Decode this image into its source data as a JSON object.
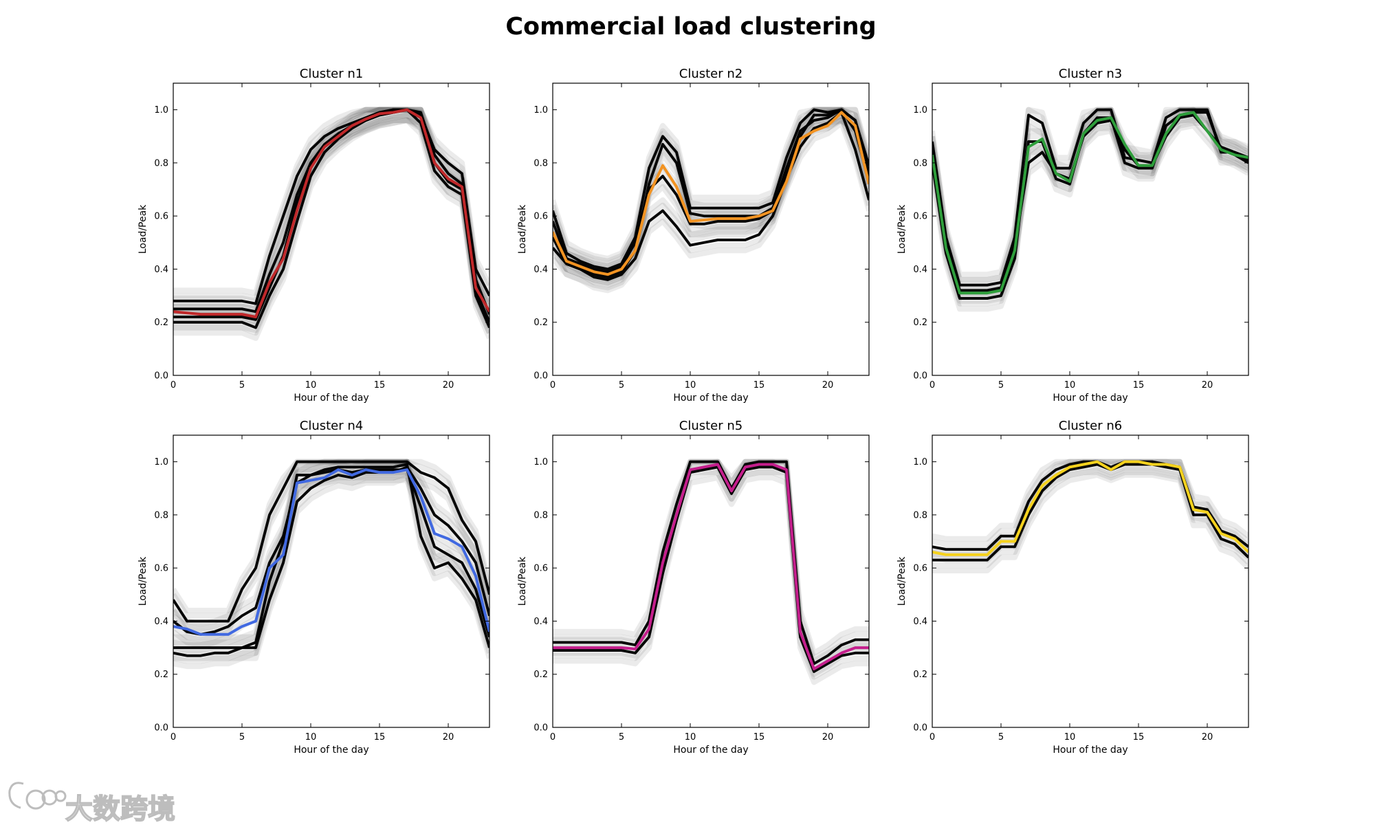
{
  "figure": {
    "title": "Commercial load clustering"
  },
  "watermark": {
    "text": "大数跨境"
  },
  "chart_data": [
    {
      "type": "line",
      "title": "Cluster n1",
      "xlabel": "Hour of the day",
      "ylabel": "Load/Peak",
      "xlim": [
        0,
        23
      ],
      "ylim": [
        0,
        1.1
      ],
      "xticks": [
        "0",
        "5",
        "10",
        "15",
        "20"
      ],
      "yticks": [
        "0.0",
        "0.2",
        "0.4",
        "0.6",
        "0.8",
        "1.0"
      ],
      "centroid_color": "#c0282a",
      "centroid": [
        0.24,
        0.235,
        0.23,
        0.23,
        0.23,
        0.23,
        0.22,
        0.35,
        0.44,
        0.62,
        0.78,
        0.86,
        0.9,
        0.94,
        0.965,
        0.985,
        0.99,
        1.0,
        0.97,
        0.8,
        0.74,
        0.71,
        0.33,
        0.24
      ],
      "band_lines": [
        [
          0.28,
          0.28,
          0.28,
          0.28,
          0.28,
          0.28,
          0.27,
          0.45,
          0.6,
          0.75,
          0.85,
          0.9,
          0.93,
          0.95,
          0.97,
          0.99,
          1.0,
          1.0,
          0.98,
          0.85,
          0.8,
          0.76,
          0.4,
          0.3
        ],
        [
          0.2,
          0.2,
          0.2,
          0.2,
          0.2,
          0.2,
          0.18,
          0.3,
          0.4,
          0.58,
          0.75,
          0.84,
          0.89,
          0.93,
          0.96,
          0.98,
          0.99,
          1.0,
          0.95,
          0.77,
          0.71,
          0.68,
          0.3,
          0.18
        ],
        [
          0.25,
          0.25,
          0.25,
          0.25,
          0.25,
          0.25,
          0.24,
          0.38,
          0.5,
          0.68,
          0.8,
          0.87,
          0.91,
          0.94,
          0.96,
          0.98,
          0.99,
          1.0,
          0.99,
          0.83,
          0.76,
          0.72,
          0.36,
          0.23
        ],
        [
          0.22,
          0.22,
          0.22,
          0.22,
          0.22,
          0.22,
          0.21,
          0.33,
          0.45,
          0.65,
          0.79,
          0.86,
          0.9,
          0.94,
          0.965,
          0.985,
          1.0,
          1.0,
          0.97,
          0.8,
          0.73,
          0.7,
          0.32,
          0.2
        ]
      ]
    },
    {
      "type": "line",
      "title": "Cluster n2",
      "xlabel": "Hour of the day",
      "ylabel": "Load/Peak",
      "xlim": [
        0,
        23
      ],
      "ylim": [
        0,
        1.1
      ],
      "xticks": [
        "0",
        "5",
        "10",
        "15",
        "20"
      ],
      "yticks": [
        "0.0",
        "0.2",
        "0.4",
        "0.6",
        "0.8",
        "1.0"
      ],
      "centroid_color": "#f29322",
      "centroid": [
        0.54,
        0.43,
        0.41,
        0.39,
        0.38,
        0.4,
        0.47,
        0.68,
        0.79,
        0.71,
        0.58,
        0.585,
        0.59,
        0.59,
        0.59,
        0.6,
        0.62,
        0.73,
        0.89,
        0.92,
        0.94,
        0.99,
        0.94,
        0.72
      ],
      "band_lines": [
        [
          0.62,
          0.46,
          0.43,
          0.41,
          0.4,
          0.42,
          0.52,
          0.78,
          0.9,
          0.84,
          0.63,
          0.63,
          0.63,
          0.63,
          0.63,
          0.63,
          0.65,
          0.82,
          0.95,
          1.0,
          0.99,
          1.0,
          0.96,
          0.79
        ],
        [
          0.52,
          0.42,
          0.4,
          0.38,
          0.37,
          0.39,
          0.47,
          0.72,
          0.87,
          0.8,
          0.61,
          0.6,
          0.6,
          0.6,
          0.6,
          0.6,
          0.63,
          0.75,
          0.9,
          0.98,
          0.98,
          1.0,
          0.96,
          0.76
        ],
        [
          0.48,
          0.42,
          0.4,
          0.37,
          0.36,
          0.38,
          0.44,
          0.58,
          0.62,
          0.56,
          0.49,
          0.5,
          0.51,
          0.51,
          0.51,
          0.53,
          0.6,
          0.74,
          0.86,
          0.93,
          0.95,
          0.99,
          0.85,
          0.66
        ],
        [
          0.58,
          0.44,
          0.42,
          0.4,
          0.39,
          0.41,
          0.5,
          0.7,
          0.75,
          0.68,
          0.57,
          0.57,
          0.58,
          0.58,
          0.58,
          0.59,
          0.62,
          0.78,
          0.92,
          0.96,
          0.97,
          1.0,
          0.92,
          0.74
        ]
      ]
    },
    {
      "type": "line",
      "title": "Cluster n3",
      "xlabel": "Hour of the day",
      "ylabel": "Load/Peak",
      "xlim": [
        0,
        23
      ],
      "ylim": [
        0,
        1.1
      ],
      "xticks": [
        "0",
        "5",
        "10",
        "15",
        "20"
      ],
      "yticks": [
        "0.0",
        "0.2",
        "0.4",
        "0.6",
        "0.8",
        "1.0"
      ],
      "centroid_color": "#2e9e3b",
      "centroid": [
        0.83,
        0.48,
        0.31,
        0.31,
        0.31,
        0.32,
        0.47,
        0.86,
        0.89,
        0.76,
        0.73,
        0.91,
        0.96,
        0.97,
        0.87,
        0.79,
        0.79,
        0.91,
        0.98,
        0.99,
        0.92,
        0.85,
        0.83,
        0.82
      ],
      "band_lines": [
        [
          0.88,
          0.52,
          0.34,
          0.34,
          0.34,
          0.35,
          0.52,
          0.98,
          0.95,
          0.78,
          0.78,
          0.95,
          1.0,
          1.0,
          0.82,
          0.81,
          0.8,
          0.97,
          1.0,
          1.0,
          1.0,
          0.84,
          0.84,
          0.81
        ],
        [
          0.8,
          0.46,
          0.29,
          0.29,
          0.29,
          0.3,
          0.44,
          0.88,
          0.88,
          0.74,
          0.72,
          0.91,
          0.97,
          0.97,
          0.8,
          0.78,
          0.78,
          0.94,
          0.98,
          0.99,
          0.99,
          0.85,
          0.83,
          0.8
        ],
        [
          0.86,
          0.5,
          0.32,
          0.32,
          0.32,
          0.33,
          0.49,
          0.8,
          0.84,
          0.76,
          0.74,
          0.9,
          0.95,
          0.96,
          0.85,
          0.79,
          0.79,
          0.9,
          0.97,
          0.98,
          0.92,
          0.86,
          0.84,
          0.82
        ]
      ]
    },
    {
      "type": "line",
      "title": "Cluster n4",
      "xlabel": "Hour of the day",
      "ylabel": "Load/Peak",
      "xlim": [
        0,
        23
      ],
      "ylim": [
        0,
        1.1
      ],
      "xticks": [
        "0",
        "5",
        "10",
        "15",
        "20"
      ],
      "yticks": [
        "0.0",
        "0.2",
        "0.4",
        "0.6",
        "0.8",
        "1.0"
      ],
      "centroid_color": "#4169e1",
      "centroid": [
        0.38,
        0.37,
        0.35,
        0.35,
        0.35,
        0.38,
        0.4,
        0.6,
        0.65,
        0.92,
        0.93,
        0.94,
        0.97,
        0.95,
        0.97,
        0.96,
        0.96,
        0.97,
        0.87,
        0.73,
        0.71,
        0.68,
        0.57,
        0.36
      ],
      "band_lines": [
        [
          0.48,
          0.4,
          0.4,
          0.4,
          0.4,
          0.52,
          0.6,
          0.8,
          0.9,
          1.0,
          1.0,
          1.0,
          1.0,
          1.0,
          1.0,
          1.0,
          1.0,
          1.0,
          0.96,
          0.94,
          0.9,
          0.78,
          0.7,
          0.5
        ],
        [
          0.3,
          0.3,
          0.3,
          0.3,
          0.3,
          0.3,
          0.32,
          0.55,
          0.7,
          0.95,
          0.95,
          0.97,
          0.98,
          0.98,
          0.98,
          0.98,
          0.98,
          0.99,
          0.72,
          0.6,
          0.62,
          0.56,
          0.48,
          0.3
        ],
        [
          0.28,
          0.27,
          0.27,
          0.28,
          0.28,
          0.3,
          0.3,
          0.48,
          0.62,
          0.85,
          0.9,
          0.93,
          0.95,
          0.94,
          0.96,
          0.96,
          0.96,
          0.98,
          0.9,
          0.8,
          0.76,
          0.7,
          0.62,
          0.42
        ],
        [
          0.4,
          0.36,
          0.35,
          0.36,
          0.38,
          0.42,
          0.45,
          0.62,
          0.72,
          0.92,
          0.95,
          0.96,
          0.97,
          0.96,
          0.97,
          0.97,
          0.97,
          0.97,
          0.83,
          0.68,
          0.65,
          0.62,
          0.52,
          0.34
        ]
      ]
    },
    {
      "type": "line",
      "title": "Cluster n5",
      "xlabel": "Hour of the day",
      "ylabel": "Load/Peak",
      "xlim": [
        0,
        23
      ],
      "ylim": [
        0,
        1.1
      ],
      "xticks": [
        "0",
        "5",
        "10",
        "15",
        "20"
      ],
      "yticks": [
        "0.0",
        "0.2",
        "0.4",
        "0.6",
        "0.8",
        "1.0"
      ],
      "centroid_color": "#c41e8c",
      "centroid": [
        0.3,
        0.3,
        0.3,
        0.3,
        0.3,
        0.3,
        0.295,
        0.37,
        0.62,
        0.8,
        0.97,
        0.98,
        0.99,
        0.89,
        0.98,
        0.99,
        0.99,
        0.97,
        0.36,
        0.22,
        0.25,
        0.28,
        0.3,
        0.3
      ],
      "band_lines": [
        [
          0.32,
          0.32,
          0.32,
          0.32,
          0.32,
          0.32,
          0.31,
          0.4,
          0.66,
          0.84,
          1.0,
          1.0,
          1.0,
          0.9,
          0.99,
          1.0,
          1.0,
          1.0,
          0.4,
          0.24,
          0.27,
          0.31,
          0.33,
          0.33
        ],
        [
          0.29,
          0.29,
          0.29,
          0.29,
          0.29,
          0.29,
          0.28,
          0.34,
          0.58,
          0.78,
          0.96,
          0.97,
          0.98,
          0.88,
          0.97,
          0.98,
          0.98,
          0.96,
          0.34,
          0.21,
          0.24,
          0.27,
          0.28,
          0.28
        ]
      ]
    },
    {
      "type": "line",
      "title": "Cluster n6",
      "xlabel": "Hour of the day",
      "ylabel": "Load/Peak",
      "xlim": [
        0,
        23
      ],
      "ylim": [
        0,
        1.1
      ],
      "xticks": [
        "0",
        "5",
        "10",
        "15",
        "20"
      ],
      "yticks": [
        "0.0",
        "0.2",
        "0.4",
        "0.6",
        "0.8",
        "1.0"
      ],
      "centroid_color": "#f5d21e",
      "centroid": [
        0.66,
        0.65,
        0.65,
        0.65,
        0.65,
        0.7,
        0.7,
        0.82,
        0.91,
        0.95,
        0.98,
        0.99,
        1.0,
        0.97,
        1.0,
        1.0,
        0.99,
        0.99,
        0.98,
        0.82,
        0.81,
        0.73,
        0.71,
        0.66
      ],
      "band_lines": [
        [
          0.68,
          0.67,
          0.67,
          0.67,
          0.67,
          0.72,
          0.72,
          0.85,
          0.93,
          0.97,
          0.99,
          1.0,
          1.0,
          0.98,
          1.0,
          1.0,
          1.0,
          0.99,
          0.98,
          0.83,
          0.82,
          0.74,
          0.72,
          0.68
        ],
        [
          0.63,
          0.63,
          0.63,
          0.63,
          0.63,
          0.68,
          0.68,
          0.8,
          0.89,
          0.94,
          0.97,
          0.98,
          0.99,
          0.97,
          0.99,
          0.99,
          0.99,
          0.98,
          0.97,
          0.8,
          0.8,
          0.71,
          0.69,
          0.64
        ]
      ]
    }
  ]
}
